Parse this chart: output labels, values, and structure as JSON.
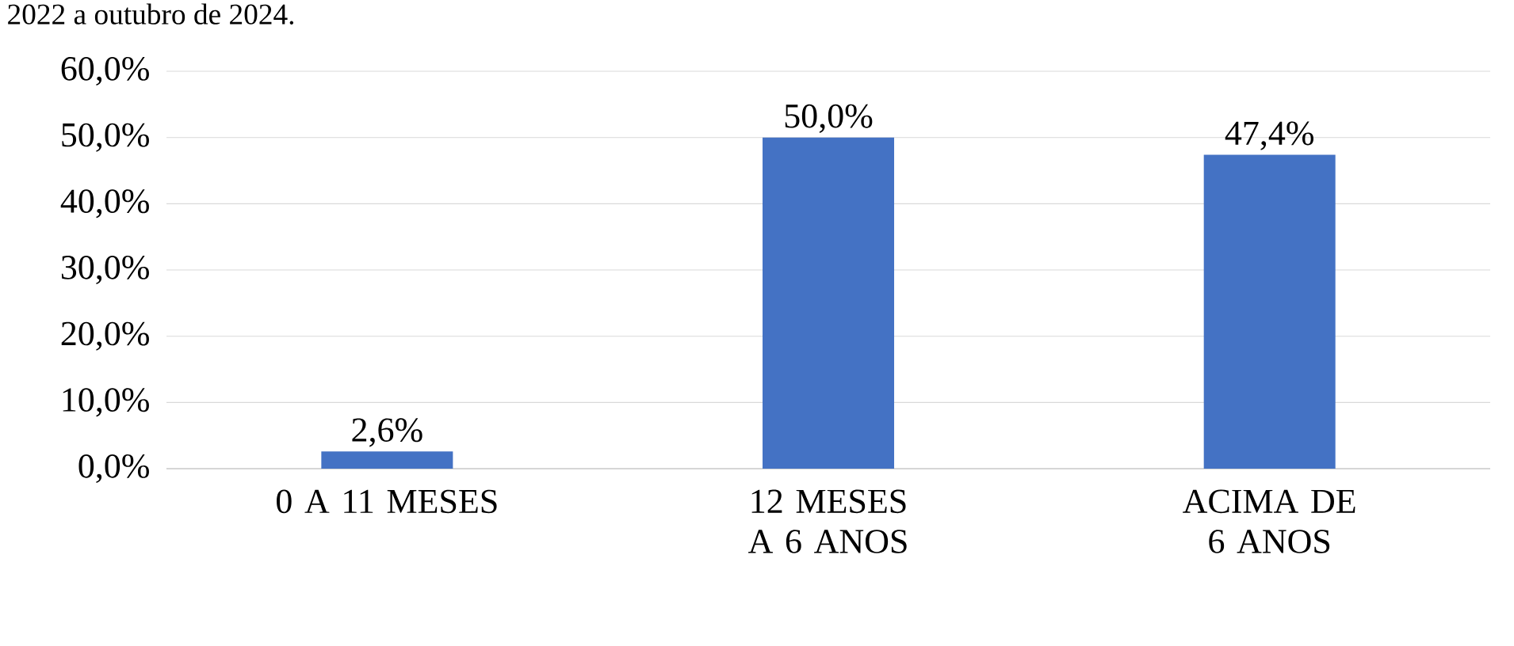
{
  "chart_data": {
    "type": "bar",
    "annotations": [
      "2022 a outubro de 2024."
    ],
    "categories": [
      "0 A 11 MESES",
      "12 MESES A 6 ANOS",
      "ACIMA DE 6 ANOS"
    ],
    "values": [
      2.6,
      50.0,
      47.4
    ],
    "value_labels": [
      "2,6%",
      "50,0%",
      "47,4%"
    ],
    "color": "#4472c4",
    "ylim": [
      0,
      60
    ],
    "yticks": [
      {
        "value": 0,
        "label": "0,0%"
      },
      {
        "value": 10,
        "label": "10,0%"
      },
      {
        "value": 20,
        "label": "20,0%"
      },
      {
        "value": 30,
        "label": "30,0%"
      },
      {
        "value": 40,
        "label": "40,0%"
      },
      {
        "value": 50,
        "label": "50,0%"
      },
      {
        "value": 60,
        "label": "60,0%"
      }
    ],
    "grid": "y"
  }
}
